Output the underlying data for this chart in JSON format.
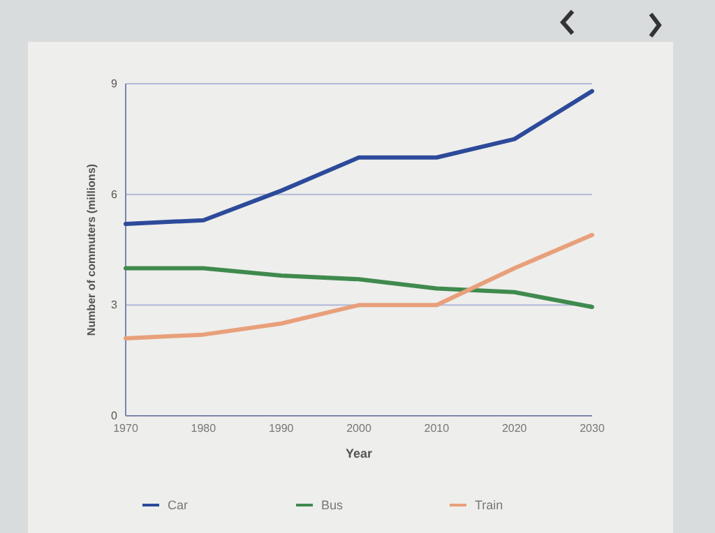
{
  "chart_data": {
    "type": "line",
    "xlabel": "Year",
    "ylabel": "Number of commuters (millions)",
    "x": [
      1970,
      1980,
      1990,
      2000,
      2010,
      2020,
      2030
    ],
    "series": [
      {
        "name": "Car",
        "color": "#2d4a9a",
        "values": [
          5.2,
          5.3,
          6.1,
          7,
          7,
          7.5,
          8.8
        ]
      },
      {
        "name": "Bus",
        "color": "#3f8a4e",
        "values": [
          4,
          4,
          3.8,
          3.7,
          3.45,
          3.35,
          2.95
        ]
      },
      {
        "name": "Train",
        "color": "#e8a07a",
        "values": [
          2.1,
          2.2,
          2.5,
          3,
          3,
          4,
          4.9
        ]
      }
    ],
    "xlim": [
      1970,
      2030
    ],
    "xticks": [
      1970,
      1980,
      1990,
      2000,
      2010,
      2020,
      2030
    ],
    "ylim": [
      0,
      9
    ],
    "yticks": [
      0,
      3,
      6,
      9
    ],
    "grid": "y",
    "legend": "bottom",
    "marker": "none",
    "line_style": "solid"
  }
}
